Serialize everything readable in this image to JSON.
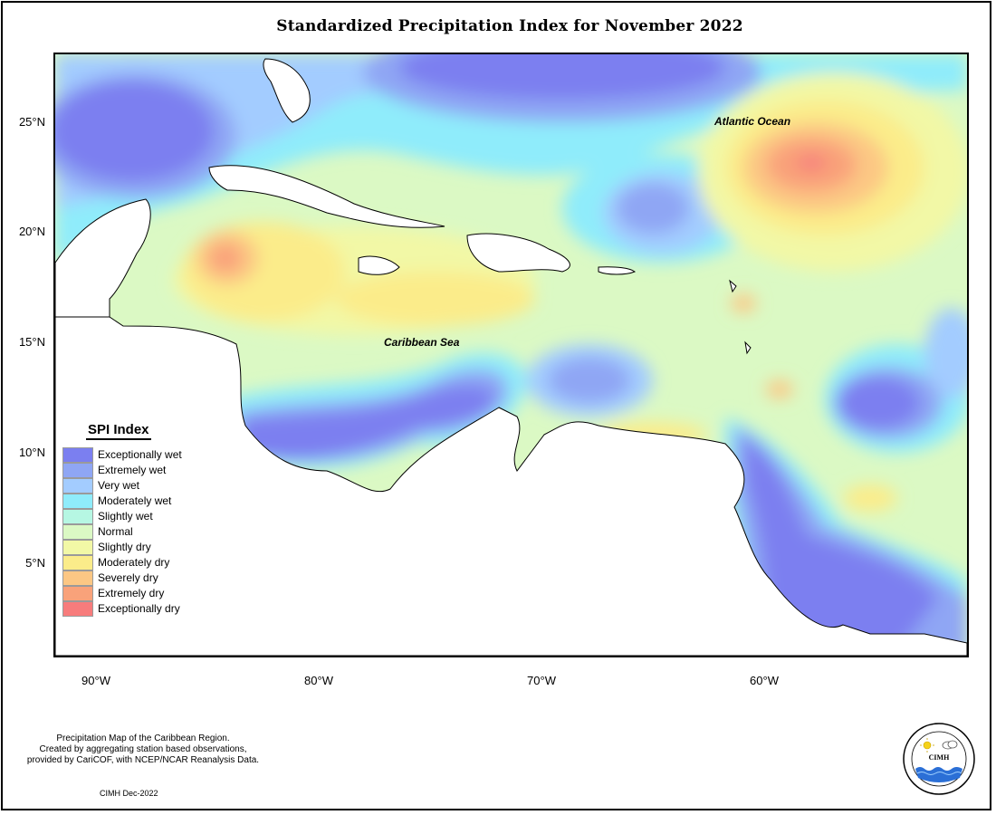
{
  "map": {
    "title": "Standardized Precipitation Index for November 2022",
    "lat_labels": [
      "25°N",
      "20°N",
      "15°N",
      "10°N",
      "5°N"
    ],
    "lon_labels": [
      "90°W",
      "80°W",
      "70°W",
      "60°W"
    ],
    "ocean_labels": {
      "atlantic": "Atlantic Ocean",
      "caribbean": "Caribbean Sea"
    }
  },
  "legend": {
    "title": "SPI Index",
    "items": [
      {
        "label": "Exceptionally wet",
        "color": "#7b7ff0"
      },
      {
        "label": "Extremely wet",
        "color": "#8fa6f4"
      },
      {
        "label": "Very wet",
        "color": "#a3ccff"
      },
      {
        "label": "Moderately wet",
        "color": "#8fecfb"
      },
      {
        "label": "Slightly wet",
        "color": "#b6f7e3"
      },
      {
        "label": "Normal",
        "color": "#dbf9c4"
      },
      {
        "label": "Slightly dry",
        "color": "#f2f8a6"
      },
      {
        "label": "Moderately dry",
        "color": "#fbec8a"
      },
      {
        "label": "Severely dry",
        "color": "#fcc784"
      },
      {
        "label": "Extremely dry",
        "color": "#f9a27a"
      },
      {
        "label": "Exceptionally dry",
        "color": "#f77c7c"
      }
    ]
  },
  "footnote": {
    "line1": "Precipitation Map of the Caribbean Region.",
    "line2": "Created by aggregating station based observations,",
    "line3": "provided by CariCOF, with NCEP/NCAR Reanalysis Data.",
    "credit": "CIMH Dec-2022"
  },
  "logo": {
    "abbr": "CIMH"
  }
}
